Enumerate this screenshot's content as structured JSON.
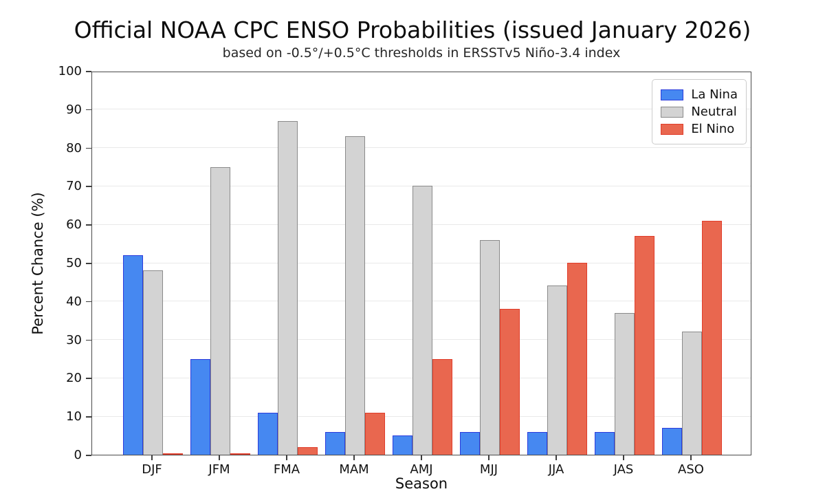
{
  "chart_data": {
    "type": "bar",
    "title": "Official NOAA CPC ENSO Probabilities (issued January 2026)",
    "subtitle": "based on -0.5°/+0.5°C thresholds in ERSSTv5 Niño-3.4 index",
    "xlabel": "Season",
    "ylabel": "Percent Chance (%)",
    "ylim": [
      0,
      100
    ],
    "ytick_step": 10,
    "grid": "horizontal",
    "legend_position": "upper-right",
    "categories": [
      "DJF",
      "JFM",
      "FMA",
      "MAM",
      "AMJ",
      "MJJ",
      "JJA",
      "JAS",
      "ASO"
    ],
    "series": [
      {
        "name": "La Nina",
        "fill_color": "#4688f1",
        "edge_color": "#2b3bdc",
        "values": [
          52,
          25,
          11,
          6,
          5,
          6,
          6,
          6,
          7
        ]
      },
      {
        "name": "Neutral",
        "fill_color": "#d3d3d3",
        "edge_color": "#8a8a8a",
        "values": [
          48,
          75,
          87,
          83,
          70,
          56,
          44,
          37,
          32
        ]
      },
      {
        "name": "El Nino",
        "fill_color": "#e9674f",
        "edge_color": "#e03c2a",
        "values": [
          0,
          0,
          2,
          11,
          25,
          38,
          50,
          57,
          61
        ]
      }
    ]
  }
}
